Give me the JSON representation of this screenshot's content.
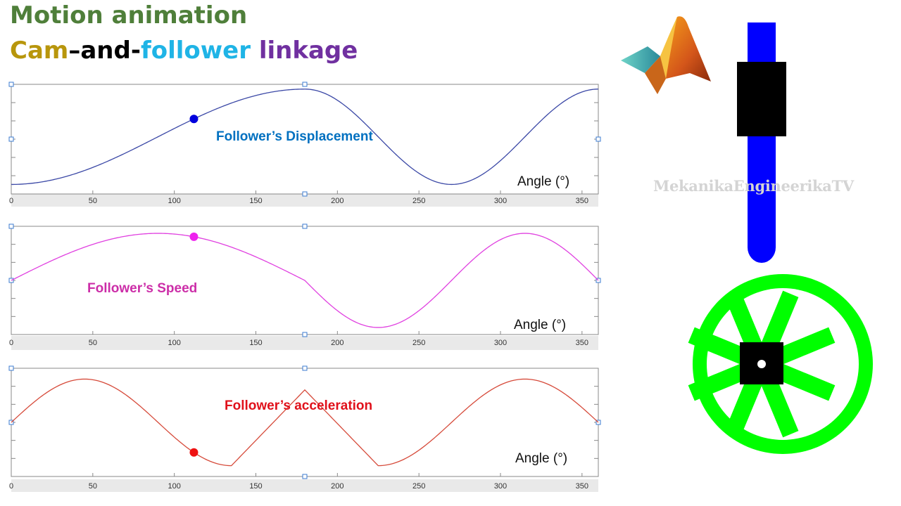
{
  "header": {
    "line1": {
      "text": "Motion animation",
      "color": "#4f7f3a"
    },
    "line2": [
      {
        "text": "Cam",
        "color": "#b8960c"
      },
      {
        "text": "–and-",
        "color": "#000000"
      },
      {
        "text": "follower",
        "color": "#1fb4e6"
      },
      {
        "text": " linkage",
        "color": "#7030a0"
      }
    ]
  },
  "watermark": "MekanikaEngineerikaTV",
  "icons": {
    "logo": "matlab-membrane-logo-icon"
  },
  "mechanism": {
    "rod_color": "#0000ff",
    "slider_color": "#000000",
    "cam_color": "#00ff00",
    "hub_color": "#000000",
    "spokes": 8
  },
  "chart_data": [
    {
      "type": "line",
      "title": "",
      "series": [
        {
          "name": "Follower’s Displacement",
          "color": "#0070c0",
          "line_color": "#3b48a6",
          "function": "displacement",
          "x_range": [
            0,
            360
          ]
        }
      ],
      "x_ticks": [
        "0",
        "50",
        "100",
        "150",
        "200",
        "250",
        "300",
        "350"
      ],
      "xlabel": "Angle (°)",
      "xlim": [
        0,
        360
      ],
      "ylim": [
        -0.1,
        1.05
      ],
      "marker": {
        "x": 112,
        "color": "#0000dd"
      },
      "grid": false
    },
    {
      "type": "line",
      "title": "",
      "series": [
        {
          "name": "Follower’s Speed",
          "color": "#cc2ea8",
          "line_color": "#e040e0",
          "function": "speed",
          "x_range": [
            0,
            360
          ]
        }
      ],
      "x_ticks": [
        "0",
        "50",
        "100",
        "150",
        "200",
        "250",
        "300",
        "350"
      ],
      "xlabel": "Angle (°)",
      "xlim": [
        0,
        360
      ],
      "ylim": [
        -1.15,
        1.15
      ],
      "marker": {
        "x": 112,
        "color": "#ee22ee"
      },
      "grid": false
    },
    {
      "type": "line",
      "title": "",
      "series": [
        {
          "name": "Follower’s acceleration",
          "color": "#e0111b",
          "line_color": "#d64a3a",
          "function": "acceleration",
          "x_range": [
            0,
            360
          ]
        }
      ],
      "x_ticks": [
        "0",
        "50",
        "100",
        "150",
        "200",
        "250",
        "300",
        "350"
      ],
      "xlabel": "Angle (°)",
      "xlim": [
        0,
        360
      ],
      "ylim": [
        -1.25,
        1.25
      ],
      "marker": {
        "x": 112,
        "color": "#ee1111"
      },
      "grid": false
    }
  ]
}
